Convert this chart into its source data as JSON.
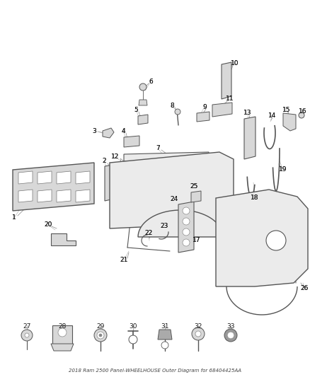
{
  "title": "2018 Ram 2500 Panel-WHEELHOUSE Outer Diagram for 68404425AA",
  "background_color": "#ffffff",
  "figure_width": 4.38,
  "figure_height": 5.33,
  "dpi": 100,
  "label_fontsize": 6.5,
  "label_color": "#1a1a1a",
  "line_color": "#404040",
  "part_stroke": "#555555",
  "part_fill": "#d8d8d8",
  "part_fill2": "#ebebeb",
  "leader_color": "#888888"
}
